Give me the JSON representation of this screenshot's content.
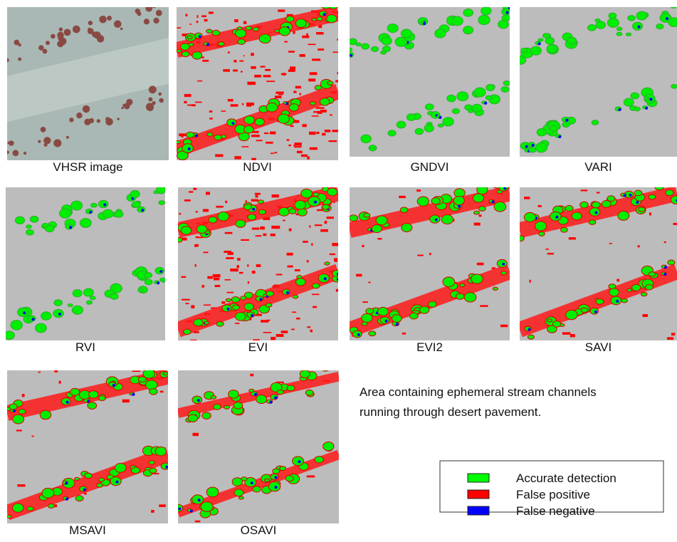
{
  "panels": [
    {
      "label": "VHSR image"
    },
    {
      "label": "NDVI"
    },
    {
      "label": "GNDVI"
    },
    {
      "label": "VARI"
    },
    {
      "label": "RVI"
    },
    {
      "label": "EVI"
    },
    {
      "label": "EVI2"
    },
    {
      "label": "SAVI"
    },
    {
      "label": "MSAVI"
    },
    {
      "label": "OSAVI"
    }
  ],
  "description": [
    "Area containing ephemeral stream channels",
    "running through desert pavement."
  ],
  "legend": [
    {
      "label": "Accurate detection",
      "color": "#00ff00"
    },
    {
      "label": "False positive",
      "color": "#ff0000"
    },
    {
      "label": "False negative",
      "color": "#0000ff"
    }
  ]
}
